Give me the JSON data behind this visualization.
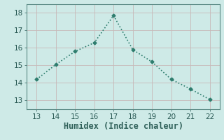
{
  "x": [
    13,
    14,
    15,
    16,
    17,
    18,
    19,
    20,
    21,
    22
  ],
  "y": [
    14.2,
    15.05,
    15.8,
    16.3,
    17.85,
    15.9,
    15.2,
    14.2,
    13.65,
    13.05
  ],
  "xlabel": "Humidex (Indice chaleur)",
  "xlim": [
    12.5,
    22.5
  ],
  "ylim": [
    12.5,
    18.5
  ],
  "xticks": [
    13,
    14,
    15,
    16,
    17,
    18,
    19,
    20,
    21,
    22
  ],
  "yticks": [
    13,
    14,
    15,
    16,
    17,
    18
  ],
  "line_color": "#2e7d6e",
  "marker": "D",
  "marker_size": 2.5,
  "bg_color": "#ceeae7",
  "grid_color_major": "#afd4cf",
  "grid_color_minor": "#c8e6e2",
  "tick_label_fontsize": 7.5,
  "xlabel_fontsize": 8.5
}
